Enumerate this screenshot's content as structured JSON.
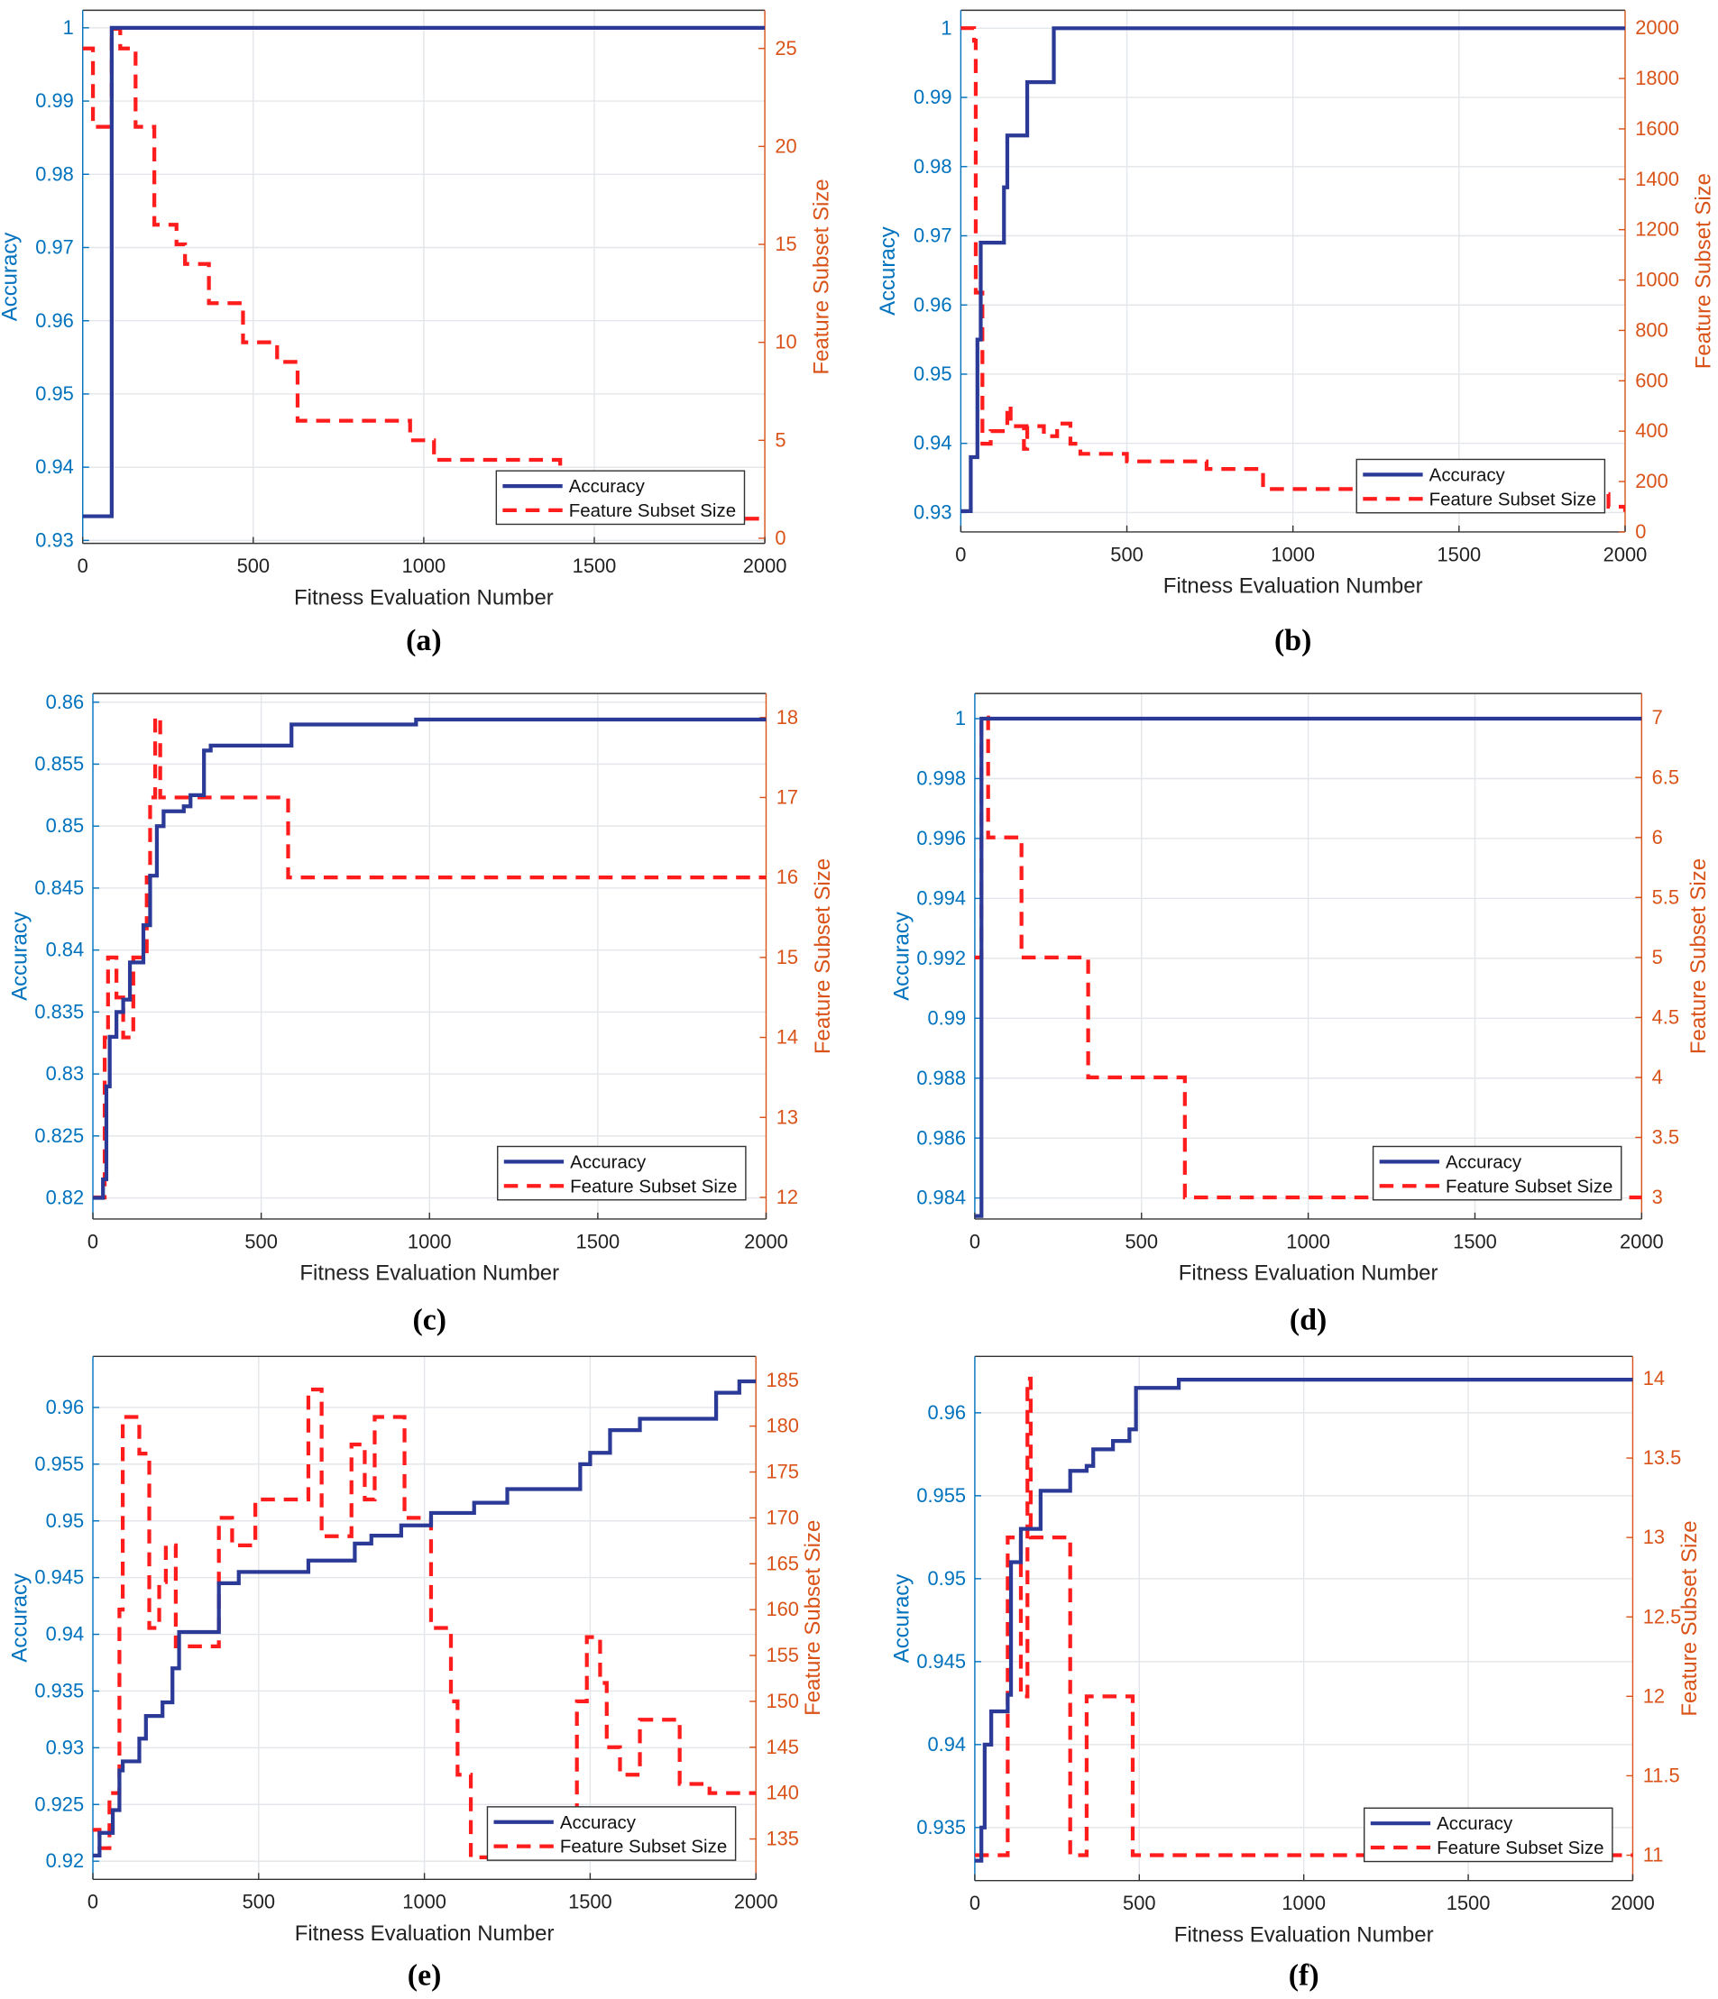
{
  "colors": {
    "accuracy_line": "#2B3A97",
    "feature_line": "#FF1C1C",
    "left_axis": "#0072BD",
    "right_axis": "#D95319",
    "grid": "#E3E6EA"
  },
  "chart_data": [
    {
      "panel": "(a)",
      "type": "line",
      "xlabel": "Fitness Evaluation Number",
      "ylabel_left": "Accuracy",
      "ylabel_right": "Feature Subset Size",
      "xlim": [
        0,
        2000
      ],
      "ylim_left": [
        0.9296,
        1.0024
      ],
      "ylim_right": [
        -0.26,
        26.95
      ],
      "x_ticks": [
        "0",
        "500",
        "1000",
        "1500",
        "2000"
      ],
      "left_ticks": [
        "0.93",
        "0.94",
        "0.95",
        "0.96",
        "0.97",
        "0.98",
        "0.99",
        "1"
      ],
      "right_ticks": [
        "0",
        "5",
        "10",
        "15",
        "20",
        "25"
      ],
      "legend": [
        "Accuracy",
        "Feature Subset Size"
      ],
      "legend_position": "bottom-right",
      "grid": true,
      "series": [
        {
          "name": "Accuracy",
          "axis": "left",
          "style": "solid",
          "points": [
            [
              0,
              0.9333
            ],
            [
              85,
              1
            ]
          ]
        },
        {
          "name": "Feature Subset Size",
          "axis": "right",
          "style": "dashed",
          "points": [
            [
              0,
              25
            ],
            [
              30,
              21
            ],
            [
              85,
              26
            ],
            [
              110,
              25
            ],
            [
              155,
              21
            ],
            [
              210,
              16
            ],
            [
              275,
              15
            ],
            [
              300,
              14
            ],
            [
              370,
              12
            ],
            [
              470,
              10
            ],
            [
              570,
              9
            ],
            [
              630,
              6
            ],
            [
              960,
              5
            ],
            [
              1030,
              4
            ],
            [
              1400,
              1
            ]
          ]
        }
      ]
    },
    {
      "panel": "(b)",
      "type": "line",
      "xlabel": "Fitness Evaluation Number",
      "ylabel_left": "Accuracy",
      "ylabel_right": "Feature Subset Size",
      "xlim": [
        0,
        2000
      ],
      "ylim_left": [
        0.9272,
        1.0026
      ],
      "ylim_right": [
        0,
        2071
      ],
      "x_ticks": [
        "0",
        "500",
        "1000",
        "1500",
        "2000"
      ],
      "left_ticks": [
        "0.93",
        "0.94",
        "0.95",
        "0.96",
        "0.97",
        "0.98",
        "0.99",
        "1"
      ],
      "right_ticks": [
        "0",
        "200",
        "400",
        "600",
        "800",
        "1000",
        "1200",
        "1400",
        "1600",
        "1800",
        "2000"
      ],
      "legend": [
        "Accuracy",
        "Feature Subset Size"
      ],
      "legend_position": "bottom-right",
      "grid": true,
      "series": [
        {
          "name": "Accuracy",
          "axis": "left",
          "style": "solid",
          "points": [
            [
              0,
              0.9302
            ],
            [
              30,
              0.938
            ],
            [
              50,
              0.955
            ],
            [
              60,
              0.969
            ],
            [
              130,
              0.977
            ],
            [
              140,
              0.9845
            ],
            [
              200,
              0.9922
            ],
            [
              280,
              1
            ]
          ]
        },
        {
          "name": "Feature Subset Size",
          "axis": "right",
          "style": "dashed",
          "points": [
            [
              0,
              2000
            ],
            [
              40,
              1950
            ],
            [
              45,
              950
            ],
            [
              65,
              350
            ],
            [
              90,
              400
            ],
            [
              140,
              500
            ],
            [
              150,
              420
            ],
            [
              190,
              330
            ],
            [
              200,
              420
            ],
            [
              250,
              380
            ],
            [
              290,
              430
            ],
            [
              330,
              350
            ],
            [
              360,
              310
            ],
            [
              500,
              280
            ],
            [
              740,
              250
            ],
            [
              910,
              170
            ],
            [
              1200,
              150
            ],
            [
              1950,
              100
            ],
            [
              2000,
              80
            ]
          ]
        }
      ]
    },
    {
      "panel": "(c)",
      "type": "line",
      "xlabel": "Fitness Evaluation Number",
      "ylabel_left": "Accuracy",
      "ylabel_right": "Feature Subset Size",
      "xlim": [
        0,
        2000
      ],
      "ylim_left": [
        0.8183,
        0.8607
      ],
      "ylim_right": [
        11.73,
        18.3
      ],
      "x_ticks": [
        "0",
        "500",
        "1000",
        "1500",
        "2000"
      ],
      "left_ticks": [
        "0.82",
        "0.825",
        "0.83",
        "0.835",
        "0.84",
        "0.845",
        "0.85",
        "0.855",
        "0.86"
      ],
      "right_ticks": [
        "12",
        "13",
        "14",
        "15",
        "16",
        "17",
        "18"
      ],
      "legend": [
        "Accuracy",
        "Feature Subset Size"
      ],
      "legend_position": "bottom-right",
      "grid": true,
      "series": [
        {
          "name": "Accuracy",
          "axis": "left",
          "style": "solid",
          "points": [
            [
              0,
              0.82
            ],
            [
              30,
              0.8215
            ],
            [
              40,
              0.829
            ],
            [
              50,
              0.833
            ],
            [
              70,
              0.835
            ],
            [
              90,
              0.836
            ],
            [
              110,
              0.839
            ],
            [
              150,
              0.842
            ],
            [
              170,
              0.846
            ],
            [
              190,
              0.85
            ],
            [
              210,
              0.8512
            ],
            [
              270,
              0.8516
            ],
            [
              290,
              0.8525
            ],
            [
              330,
              0.8561
            ],
            [
              350,
              0.8565
            ],
            [
              590,
              0.8582
            ],
            [
              960,
              0.8586
            ]
          ]
        },
        {
          "name": "Feature Subset Size",
          "axis": "right",
          "style": "dashed",
          "points": [
            [
              0,
              12
            ],
            [
              35,
              14
            ],
            [
              45,
              15
            ],
            [
              70,
              14.5
            ],
            [
              90,
              14
            ],
            [
              120,
              15
            ],
            [
              160,
              16
            ],
            [
              170,
              17
            ],
            [
              185,
              18
            ],
            [
              200,
              17
            ],
            [
              580,
              16
            ]
          ]
        }
      ]
    },
    {
      "panel": "(d)",
      "type": "line",
      "xlabel": "Fitness Evaluation Number",
      "ylabel_left": "Accuracy",
      "ylabel_right": "Feature Subset Size",
      "xlim": [
        0,
        2000
      ],
      "ylim_left": [
        0.9833,
        1.00084
      ],
      "ylim_right": [
        2.82,
        7.2
      ],
      "x_ticks": [
        "0",
        "500",
        "1000",
        "1500",
        "2000"
      ],
      "left_ticks": [
        "0.984",
        "0.986",
        "0.988",
        "0.99",
        "0.992",
        "0.994",
        "0.996",
        "0.998",
        "1"
      ],
      "right_ticks": [
        "3",
        "3.5",
        "4",
        "4.5",
        "5",
        "5.5",
        "6",
        "6.5",
        "7"
      ],
      "legend": [
        "Accuracy",
        "Feature Subset Size"
      ],
      "legend_position": "bottom-right",
      "grid": true,
      "series": [
        {
          "name": "Accuracy",
          "axis": "left",
          "style": "solid",
          "points": [
            [
              0,
              0.9834
            ],
            [
              20,
              1
            ]
          ]
        },
        {
          "name": "Feature Subset Size",
          "axis": "right",
          "style": "dashed",
          "points": [
            [
              0,
              5
            ],
            [
              20,
              7
            ],
            [
              40,
              6
            ],
            [
              140,
              5
            ],
            [
              340,
              4
            ],
            [
              630,
              3
            ]
          ]
        }
      ]
    },
    {
      "panel": "(e)",
      "type": "line",
      "xlabel": "Fitness Evaluation Number",
      "ylabel_left": "Accuracy",
      "ylabel_right": "Feature Subset Size",
      "xlim": [
        0,
        2000
      ],
      "ylim_left": [
        0.9184,
        0.9645
      ],
      "ylim_right": [
        130.6,
        187.6
      ],
      "x_ticks": [
        "0",
        "500",
        "1000",
        "1500",
        "2000"
      ],
      "left_ticks": [
        "0.92",
        "0.925",
        "0.93",
        "0.935",
        "0.94",
        "0.945",
        "0.95",
        "0.955",
        "0.96"
      ],
      "right_ticks": [
        "135",
        "140",
        "145",
        "150",
        "155",
        "160",
        "165",
        "170",
        "175",
        "180",
        "185"
      ],
      "legend": [
        "Accuracy",
        "Feature Subset Size"
      ],
      "legend_position": "bottom-right",
      "grid": true,
      "series": [
        {
          "name": "Accuracy",
          "axis": "left",
          "style": "solid",
          "points": [
            [
              0,
              0.9205
            ],
            [
              20,
              0.9225
            ],
            [
              60,
              0.9245
            ],
            [
              80,
              0.928
            ],
            [
              90,
              0.9288
            ],
            [
              140,
              0.9308
            ],
            [
              160,
              0.9328
            ],
            [
              210,
              0.934
            ],
            [
              240,
              0.937
            ],
            [
              260,
              0.9402
            ],
            [
              380,
              0.9445
            ],
            [
              440,
              0.9455
            ],
            [
              650,
              0.9465
            ],
            [
              790,
              0.948
            ],
            [
              840,
              0.9487
            ],
            [
              930,
              0.9496
            ],
            [
              1020,
              0.9507
            ],
            [
              1150,
              0.9516
            ],
            [
              1250,
              0.9528
            ],
            [
              1470,
              0.955
            ],
            [
              1500,
              0.956
            ],
            [
              1560,
              0.958
            ],
            [
              1650,
              0.959
            ],
            [
              1880,
              0.9613
            ],
            [
              1950,
              0.9623
            ]
          ]
        },
        {
          "name": "Feature Subset Size",
          "axis": "right",
          "style": "dashed",
          "points": [
            [
              0,
              136
            ],
            [
              20,
              134
            ],
            [
              50,
              140
            ],
            [
              80,
              160
            ],
            [
              90,
              181
            ],
            [
              140,
              177
            ],
            [
              170,
              158
            ],
            [
              200,
              163
            ],
            [
              220,
              167
            ],
            [
              250,
              156
            ],
            [
              380,
              170
            ],
            [
              420,
              167
            ],
            [
              490,
              172
            ],
            [
              650,
              184
            ],
            [
              690,
              168
            ],
            [
              780,
              178
            ],
            [
              820,
              172
            ],
            [
              850,
              181
            ],
            [
              940,
              170
            ],
            [
              1010,
              170
            ],
            [
              1020,
              158
            ],
            [
              1080,
              150
            ],
            [
              1100,
              142
            ],
            [
              1140,
              133
            ],
            [
              1460,
              150
            ],
            [
              1490,
              157
            ],
            [
              1530,
              152
            ],
            [
              1550,
              145
            ],
            [
              1590,
              142
            ],
            [
              1650,
              148
            ],
            [
              1770,
              141
            ],
            [
              1860,
              140
            ]
          ]
        }
      ]
    },
    {
      "panel": "(f)",
      "type": "line",
      "xlabel": "Fitness Evaluation Number",
      "ylabel_left": "Accuracy",
      "ylabel_right": "Feature Subset Size",
      "xlim": [
        0,
        2000
      ],
      "ylim_left": [
        0.9318,
        0.9634
      ],
      "ylim_right": [
        10.84,
        14.14
      ],
      "x_ticks": [
        "0",
        "500",
        "1000",
        "1500",
        "2000"
      ],
      "left_ticks": [
        "0.935",
        "0.94",
        "0.945",
        "0.95",
        "0.955",
        "0.96"
      ],
      "right_ticks": [
        "11",
        "11.5",
        "12",
        "12.5",
        "13",
        "13.5",
        "14"
      ],
      "legend": [
        "Accuracy",
        "Feature Subset Size"
      ],
      "legend_position": "bottom-right",
      "grid": true,
      "series": [
        {
          "name": "Accuracy",
          "axis": "left",
          "style": "solid",
          "points": [
            [
              0,
              0.933
            ],
            [
              20,
              0.935
            ],
            [
              30,
              0.94
            ],
            [
              50,
              0.942
            ],
            [
              100,
              0.943
            ],
            [
              110,
              0.951
            ],
            [
              140,
              0.953
            ],
            [
              200,
              0.9553
            ],
            [
              290,
              0.9565
            ],
            [
              340,
              0.9568
            ],
            [
              360,
              0.9578
            ],
            [
              420,
              0.9583
            ],
            [
              470,
              0.959
            ],
            [
              490,
              0.9615
            ],
            [
              620,
              0.962
            ]
          ]
        },
        {
          "name": "Feature Subset Size",
          "axis": "right",
          "style": "dashed",
          "points": [
            [
              0,
              11
            ],
            [
              100,
              13
            ],
            [
              140,
              12
            ],
            [
              160,
              14
            ],
            [
              170,
              13
            ],
            [
              290,
              11
            ],
            [
              340,
              12
            ],
            [
              480,
              11
            ]
          ]
        }
      ]
    }
  ]
}
